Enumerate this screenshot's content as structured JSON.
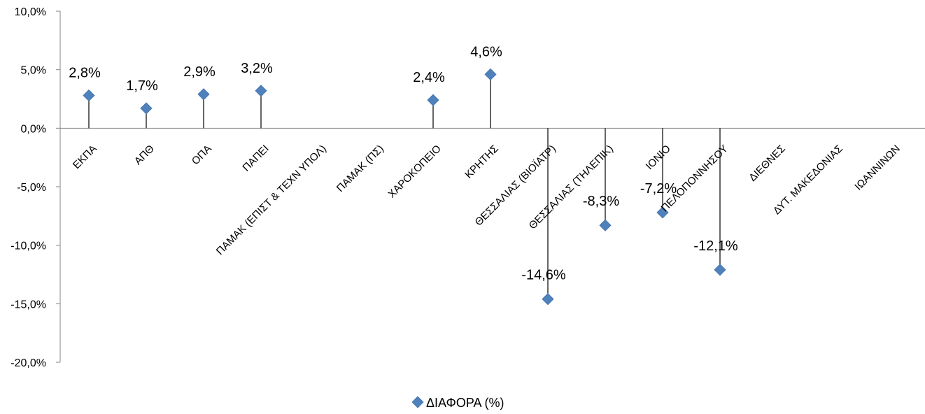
{
  "chart_data": {
    "type": "scatter",
    "categories": [
      "ΕΚΠΑ",
      "ΑΠΘ",
      "ΟΠΑ",
      "ΠΑΠΕΙ",
      "ΠΑΜΑΚ (ΕΠΙΣΤ & ΤΕΧΝ ΥΠΟΛ)",
      "ΠΑΜΑΚ (ΠΣ)",
      "ΧΑΡΟΚΟΠΕΙΟ",
      "ΚΡΗΤΗΣ",
      "ΘΕΣΣΑΛΙΑΣ (ΒΙΟΪΑΤΡ)",
      "ΘΕΣΣΑΛΙΑΣ (ΤΗΛΕΠΙΚ)",
      "ΙΟΝΙΟ",
      "ΠΕΛΟΠΟΝΝΗΣΟΥ",
      "ΔΙΕΘΝΕΣ",
      "ΔΥΤ. ΜΑΚΕΔΟΝΙΑΣ",
      "ΙΩΑΝΝΙΝΩΝ"
    ],
    "series": [
      {
        "name": "ΔΙΑΦΟΡΑ (%)",
        "values": [
          2.8,
          1.7,
          2.9,
          3.2,
          null,
          null,
          2.4,
          4.6,
          -14.6,
          -8.3,
          -7.2,
          -12.1,
          null,
          null,
          null
        ],
        "labels": [
          "2,8%",
          "1,7%",
          "2,9%",
          "3,2%",
          "",
          "",
          "2,4%",
          "4,6%",
          "-14,6%",
          "-8,3%",
          "-7,2%",
          "-12,1%",
          "",
          "",
          ""
        ],
        "color": "#4f81bd"
      }
    ],
    "ylim": [
      -20,
      10
    ],
    "y_ticks": [
      10,
      5,
      0,
      -5,
      -10,
      -15,
      -20
    ],
    "y_tick_labels": [
      "10,0%",
      "5,0%",
      "0,0%",
      "-5,0%",
      "-10,0%",
      "-15,0%",
      "-20,0%"
    ],
    "drop_lines": true,
    "legend_position": "bottom",
    "grid": false,
    "title": "",
    "xlabel": "",
    "ylabel": ""
  }
}
